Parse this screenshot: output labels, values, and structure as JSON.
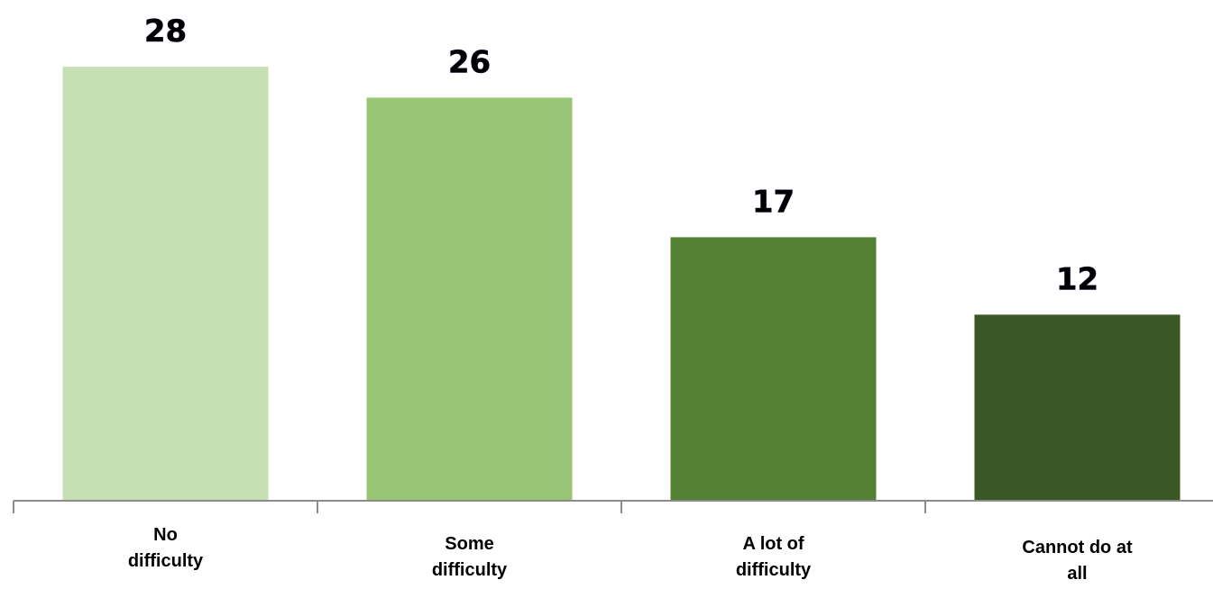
{
  "chart_data": {
    "type": "bar",
    "categories": [
      [
        "No",
        "difficulty"
      ],
      [
        "Some",
        "difficulty"
      ],
      [
        "A lot of",
        "difficulty"
      ],
      [
        "Cannot do at",
        "all"
      ]
    ],
    "values": [
      28,
      26,
      17,
      12
    ],
    "value_labels": [
      "28",
      "26",
      "17",
      "12"
    ],
    "colors": [
      "#c6e0b4",
      "#98c675",
      "#548235",
      "#3a5726"
    ],
    "axis_color": "#8c8c8c",
    "ylim": [
      0,
      28
    ],
    "grid": false,
    "legend": "none",
    "title": "",
    "xlabel": "",
    "ylabel": ""
  }
}
